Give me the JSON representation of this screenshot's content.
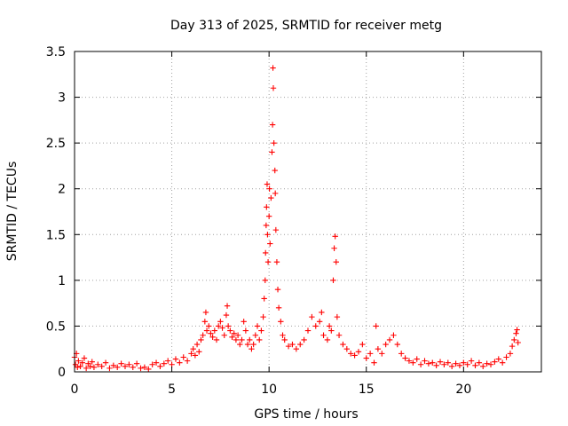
{
  "chart_data": {
    "type": "scatter",
    "title": "Day 313 of 2025, SRMTID for receiver metg",
    "xlabel": "GPS time / hours",
    "ylabel": "SRMTID / TECUs",
    "xlim": [
      0,
      24
    ],
    "ylim": [
      0,
      3.5
    ],
    "xticks": [
      0,
      5,
      10,
      15,
      20
    ],
    "yticks": [
      0,
      0.5,
      1,
      1.5,
      2,
      2.5,
      3,
      3.5
    ],
    "xtick_labels": [
      "0",
      "5",
      "10",
      "15",
      "20"
    ],
    "ytick_labels": [
      "0",
      "0.5",
      "1",
      "1.5",
      "2",
      "2.5",
      "3",
      "3.5"
    ],
    "grid": true,
    "marker": "+",
    "colors": {
      "series": "#ff0000",
      "grid": "#a0a0a0",
      "axis": "#000000"
    },
    "series": [
      {
        "name": "SRMTID",
        "points": [
          [
            0.0,
            0.16
          ],
          [
            0.05,
            0.08
          ],
          [
            0.1,
            0.2
          ],
          [
            0.15,
            0.05
          ],
          [
            0.2,
            0.12
          ],
          [
            0.3,
            0.06
          ],
          [
            0.4,
            0.1
          ],
          [
            0.5,
            0.15
          ],
          [
            0.6,
            0.04
          ],
          [
            0.7,
            0.09
          ],
          [
            0.8,
            0.06
          ],
          [
            0.9,
            0.11
          ],
          [
            1.0,
            0.05
          ],
          [
            1.2,
            0.08
          ],
          [
            1.4,
            0.06
          ],
          [
            1.6,
            0.1
          ],
          [
            1.8,
            0.04
          ],
          [
            2.0,
            0.07
          ],
          [
            2.2,
            0.05
          ],
          [
            2.4,
            0.09
          ],
          [
            2.6,
            0.06
          ],
          [
            2.8,
            0.08
          ],
          [
            3.0,
            0.05
          ],
          [
            3.2,
            0.09
          ],
          [
            3.4,
            0.04
          ],
          [
            3.6,
            0.05
          ],
          [
            3.8,
            0.03
          ],
          [
            4.0,
            0.08
          ],
          [
            4.2,
            0.1
          ],
          [
            4.4,
            0.06
          ],
          [
            4.6,
            0.09
          ],
          [
            4.8,
            0.12
          ],
          [
            5.0,
            0.08
          ],
          [
            5.2,
            0.14
          ],
          [
            5.4,
            0.1
          ],
          [
            5.6,
            0.16
          ],
          [
            5.8,
            0.12
          ],
          [
            6.0,
            0.2
          ],
          [
            6.1,
            0.25
          ],
          [
            6.2,
            0.18
          ],
          [
            6.3,
            0.3
          ],
          [
            6.4,
            0.22
          ],
          [
            6.5,
            0.35
          ],
          [
            6.6,
            0.4
          ],
          [
            6.7,
            0.55
          ],
          [
            6.75,
            0.65
          ],
          [
            6.8,
            0.45
          ],
          [
            6.9,
            0.5
          ],
          [
            7.0,
            0.42
          ],
          [
            7.1,
            0.38
          ],
          [
            7.2,
            0.45
          ],
          [
            7.3,
            0.35
          ],
          [
            7.4,
            0.5
          ],
          [
            7.5,
            0.55
          ],
          [
            7.6,
            0.48
          ],
          [
            7.7,
            0.4
          ],
          [
            7.8,
            0.62
          ],
          [
            7.85,
            0.72
          ],
          [
            7.9,
            0.5
          ],
          [
            8.0,
            0.45
          ],
          [
            8.1,
            0.38
          ],
          [
            8.2,
            0.42
          ],
          [
            8.3,
            0.35
          ],
          [
            8.4,
            0.4
          ],
          [
            8.5,
            0.3
          ],
          [
            8.6,
            0.35
          ],
          [
            8.7,
            0.55
          ],
          [
            8.8,
            0.45
          ],
          [
            8.9,
            0.3
          ],
          [
            9.0,
            0.35
          ],
          [
            9.1,
            0.25
          ],
          [
            9.2,
            0.3
          ],
          [
            9.3,
            0.4
          ],
          [
            9.4,
            0.5
          ],
          [
            9.5,
            0.35
          ],
          [
            9.6,
            0.45
          ],
          [
            9.7,
            0.6
          ],
          [
            9.75,
            0.8
          ],
          [
            9.8,
            1.0
          ],
          [
            9.82,
            1.3
          ],
          [
            9.85,
            1.6
          ],
          [
            9.87,
            1.8
          ],
          [
            9.9,
            2.05
          ],
          [
            9.92,
            1.5
          ],
          [
            9.95,
            1.2
          ],
          [
            10.0,
            1.7
          ],
          [
            10.02,
            2.0
          ],
          [
            10.05,
            1.4
          ],
          [
            10.1,
            1.9
          ],
          [
            10.15,
            2.4
          ],
          [
            10.18,
            2.7
          ],
          [
            10.2,
            3.32
          ],
          [
            10.22,
            3.1
          ],
          [
            10.25,
            2.5
          ],
          [
            10.3,
            2.2
          ],
          [
            10.32,
            1.95
          ],
          [
            10.35,
            1.55
          ],
          [
            10.4,
            1.2
          ],
          [
            10.45,
            0.9
          ],
          [
            10.5,
            0.7
          ],
          [
            10.6,
            0.55
          ],
          [
            10.7,
            0.4
          ],
          [
            10.8,
            0.35
          ],
          [
            11.0,
            0.28
          ],
          [
            11.2,
            0.3
          ],
          [
            11.4,
            0.25
          ],
          [
            11.6,
            0.3
          ],
          [
            11.8,
            0.35
          ],
          [
            12.0,
            0.45
          ],
          [
            12.2,
            0.6
          ],
          [
            12.4,
            0.5
          ],
          [
            12.6,
            0.55
          ],
          [
            12.7,
            0.65
          ],
          [
            12.8,
            0.4
          ],
          [
            13.0,
            0.35
          ],
          [
            13.1,
            0.5
          ],
          [
            13.2,
            0.45
          ],
          [
            13.3,
            1.0
          ],
          [
            13.35,
            1.35
          ],
          [
            13.4,
            1.48
          ],
          [
            13.45,
            1.2
          ],
          [
            13.5,
            0.6
          ],
          [
            13.6,
            0.4
          ],
          [
            13.8,
            0.3
          ],
          [
            14.0,
            0.25
          ],
          [
            14.2,
            0.2
          ],
          [
            14.4,
            0.18
          ],
          [
            14.6,
            0.22
          ],
          [
            14.8,
            0.3
          ],
          [
            15.0,
            0.15
          ],
          [
            15.2,
            0.2
          ],
          [
            15.4,
            0.1
          ],
          [
            15.5,
            0.5
          ],
          [
            15.6,
            0.25
          ],
          [
            15.8,
            0.2
          ],
          [
            16.0,
            0.3
          ],
          [
            16.2,
            0.35
          ],
          [
            16.4,
            0.4
          ],
          [
            16.6,
            0.3
          ],
          [
            16.8,
            0.2
          ],
          [
            17.0,
            0.15
          ],
          [
            17.2,
            0.12
          ],
          [
            17.4,
            0.1
          ],
          [
            17.6,
            0.14
          ],
          [
            17.8,
            0.08
          ],
          [
            18.0,
            0.12
          ],
          [
            18.2,
            0.09
          ],
          [
            18.4,
            0.1
          ],
          [
            18.6,
            0.07
          ],
          [
            18.8,
            0.11
          ],
          [
            19.0,
            0.08
          ],
          [
            19.2,
            0.1
          ],
          [
            19.4,
            0.06
          ],
          [
            19.6,
            0.09
          ],
          [
            19.8,
            0.07
          ],
          [
            20.0,
            0.1
          ],
          [
            20.2,
            0.08
          ],
          [
            20.4,
            0.12
          ],
          [
            20.6,
            0.07
          ],
          [
            20.8,
            0.1
          ],
          [
            21.0,
            0.06
          ],
          [
            21.2,
            0.09
          ],
          [
            21.4,
            0.08
          ],
          [
            21.6,
            0.11
          ],
          [
            21.8,
            0.14
          ],
          [
            22.0,
            0.1
          ],
          [
            22.2,
            0.16
          ],
          [
            22.4,
            0.2
          ],
          [
            22.5,
            0.28
          ],
          [
            22.6,
            0.35
          ],
          [
            22.7,
            0.42
          ],
          [
            22.75,
            0.46
          ],
          [
            22.8,
            0.32
          ]
        ]
      }
    ]
  }
}
